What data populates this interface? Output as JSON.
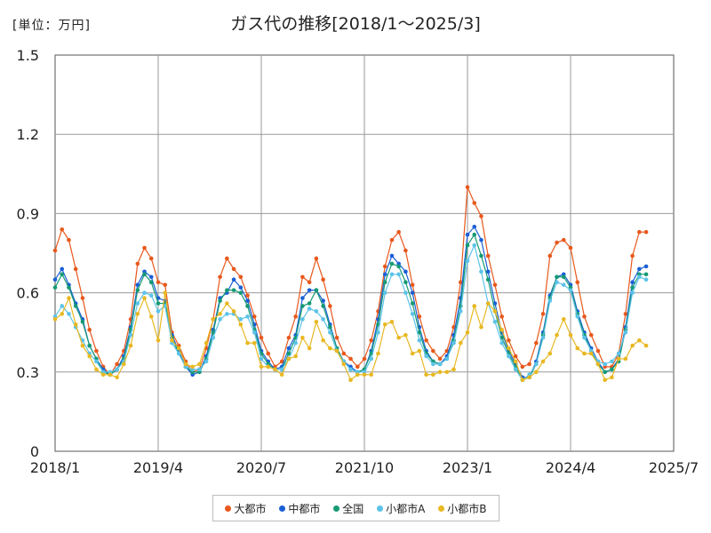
{
  "chart_data": {
    "type": "line",
    "title": "ガス代の推移[2018/1～2025/3]",
    "unit_label": "[単位：万円]",
    "xlabel": "",
    "ylabel": "",
    "ylim": [
      0,
      1.5
    ],
    "y_ticks": [
      "0",
      "0.3",
      "0.6",
      "0.9",
      "1.2",
      "1.5"
    ],
    "y_tick_values": [
      0,
      0.3,
      0.6,
      0.9,
      1.2,
      1.5
    ],
    "x_ticks": [
      "2018/1",
      "2019/4",
      "2020/7",
      "2021/10",
      "2023/1",
      "2024/4",
      "2025/7"
    ],
    "x_tick_index": [
      0,
      15,
      30,
      45,
      60,
      75,
      90
    ],
    "x_start": "2018/1",
    "x_end": "2025/3",
    "grid": true,
    "legend_position": "bottom",
    "series": [
      {
        "name": "大都市",
        "color": "#e8581c",
        "values": [
          0.76,
          0.84,
          0.8,
          0.69,
          0.58,
          0.46,
          0.38,
          0.32,
          0.29,
          0.33,
          0.38,
          0.5,
          0.71,
          0.77,
          0.73,
          0.64,
          0.63,
          0.45,
          0.4,
          0.34,
          0.3,
          0.31,
          0.39,
          0.5,
          0.66,
          0.73,
          0.69,
          0.66,
          0.59,
          0.51,
          0.43,
          0.37,
          0.32,
          0.34,
          0.43,
          0.51,
          0.66,
          0.64,
          0.73,
          0.65,
          0.55,
          0.43,
          0.37,
          0.35,
          0.32,
          0.35,
          0.42,
          0.53,
          0.7,
          0.8,
          0.83,
          0.76,
          0.63,
          0.51,
          0.42,
          0.38,
          0.35,
          0.38,
          0.47,
          0.64,
          1.0,
          0.94,
          0.89,
          0.74,
          0.63,
          0.51,
          0.42,
          0.36,
          0.32,
          0.33,
          0.41,
          0.52,
          0.74,
          0.79,
          0.8,
          0.77,
          0.64,
          0.51,
          0.44,
          0.38,
          0.32,
          0.32,
          0.37,
          0.52,
          0.74,
          0.83,
          0.83
        ]
      },
      {
        "name": "中都市",
        "color": "#1a5fd6",
        "values": [
          0.65,
          0.69,
          0.63,
          0.56,
          0.5,
          0.4,
          0.35,
          0.31,
          0.29,
          0.31,
          0.36,
          0.47,
          0.63,
          0.68,
          0.66,
          0.58,
          0.57,
          0.44,
          0.38,
          0.32,
          0.29,
          0.3,
          0.36,
          0.46,
          0.58,
          0.6,
          0.65,
          0.62,
          0.57,
          0.48,
          0.38,
          0.34,
          0.31,
          0.32,
          0.39,
          0.44,
          0.58,
          0.61,
          0.61,
          0.57,
          0.48,
          0.39,
          0.34,
          0.32,
          0.3,
          0.31,
          0.38,
          0.5,
          0.67,
          0.74,
          0.71,
          0.68,
          0.6,
          0.47,
          0.38,
          0.34,
          0.33,
          0.36,
          0.44,
          0.58,
          0.82,
          0.85,
          0.8,
          0.68,
          0.56,
          0.45,
          0.38,
          0.33,
          0.28,
          0.28,
          0.34,
          0.45,
          0.59,
          0.66,
          0.67,
          0.63,
          0.53,
          0.45,
          0.39,
          0.34,
          0.3,
          0.31,
          0.35,
          0.47,
          0.64,
          0.69,
          0.7
        ]
      },
      {
        "name": "全国",
        "color": "#159a73",
        "values": [
          0.62,
          0.67,
          0.62,
          0.55,
          0.49,
          0.4,
          0.35,
          0.3,
          0.29,
          0.31,
          0.35,
          0.46,
          0.61,
          0.67,
          0.64,
          0.56,
          0.56,
          0.43,
          0.37,
          0.32,
          0.3,
          0.3,
          0.35,
          0.45,
          0.57,
          0.61,
          0.61,
          0.6,
          0.55,
          0.46,
          0.37,
          0.33,
          0.31,
          0.31,
          0.37,
          0.43,
          0.55,
          0.56,
          0.61,
          0.55,
          0.47,
          0.39,
          0.34,
          0.31,
          0.3,
          0.31,
          0.37,
          0.48,
          0.64,
          0.71,
          0.7,
          0.64,
          0.56,
          0.45,
          0.37,
          0.34,
          0.33,
          0.35,
          0.42,
          0.55,
          0.78,
          0.82,
          0.74,
          0.65,
          0.53,
          0.43,
          0.37,
          0.32,
          0.27,
          0.28,
          0.33,
          0.44,
          0.58,
          0.66,
          0.66,
          0.62,
          0.52,
          0.44,
          0.38,
          0.33,
          0.3,
          0.31,
          0.34,
          0.46,
          0.62,
          0.67,
          0.67
        ]
      },
      {
        "name": "小都市A",
        "color": "#5cc3e8",
        "values": [
          0.51,
          0.55,
          0.52,
          0.47,
          0.42,
          0.37,
          0.34,
          0.3,
          0.3,
          0.31,
          0.34,
          0.44,
          0.56,
          0.6,
          0.59,
          0.53,
          0.55,
          0.41,
          0.37,
          0.32,
          0.31,
          0.31,
          0.34,
          0.43,
          0.5,
          0.52,
          0.52,
          0.5,
          0.51,
          0.45,
          0.35,
          0.32,
          0.31,
          0.31,
          0.35,
          0.41,
          0.5,
          0.54,
          0.53,
          0.5,
          0.45,
          0.38,
          0.34,
          0.31,
          0.3,
          0.3,
          0.35,
          0.45,
          0.6,
          0.67,
          0.67,
          0.6,
          0.52,
          0.42,
          0.36,
          0.33,
          0.33,
          0.35,
          0.41,
          0.53,
          0.72,
          0.78,
          0.68,
          0.56,
          0.49,
          0.41,
          0.36,
          0.31,
          0.27,
          0.29,
          0.33,
          0.43,
          0.57,
          0.64,
          0.63,
          0.61,
          0.51,
          0.43,
          0.38,
          0.34,
          0.33,
          0.34,
          0.37,
          0.45,
          0.6,
          0.66,
          0.65
        ]
      },
      {
        "name": "小都市B",
        "color": "#e8b822",
        "values": [
          0.5,
          0.52,
          0.58,
          0.48,
          0.4,
          0.36,
          0.31,
          0.29,
          0.29,
          0.28,
          0.33,
          0.4,
          0.52,
          0.58,
          0.51,
          0.42,
          0.6,
          0.42,
          0.39,
          0.33,
          0.32,
          0.33,
          0.41,
          0.5,
          0.52,
          0.56,
          0.53,
          0.48,
          0.41,
          0.41,
          0.32,
          0.32,
          0.31,
          0.29,
          0.35,
          0.36,
          0.43,
          0.39,
          0.49,
          0.42,
          0.39,
          0.38,
          0.33,
          0.27,
          0.29,
          0.29,
          0.29,
          0.37,
          0.48,
          0.49,
          0.43,
          0.44,
          0.37,
          0.38,
          0.29,
          0.29,
          0.3,
          0.3,
          0.31,
          0.41,
          0.45,
          0.55,
          0.47,
          0.56,
          0.53,
          0.46,
          0.39,
          0.34,
          0.27,
          0.28,
          0.3,
          0.34,
          0.37,
          0.44,
          0.5,
          0.44,
          0.39,
          0.37,
          0.37,
          0.33,
          0.27,
          0.28,
          0.35,
          0.35,
          0.4,
          0.42,
          0.4
        ]
      }
    ]
  }
}
